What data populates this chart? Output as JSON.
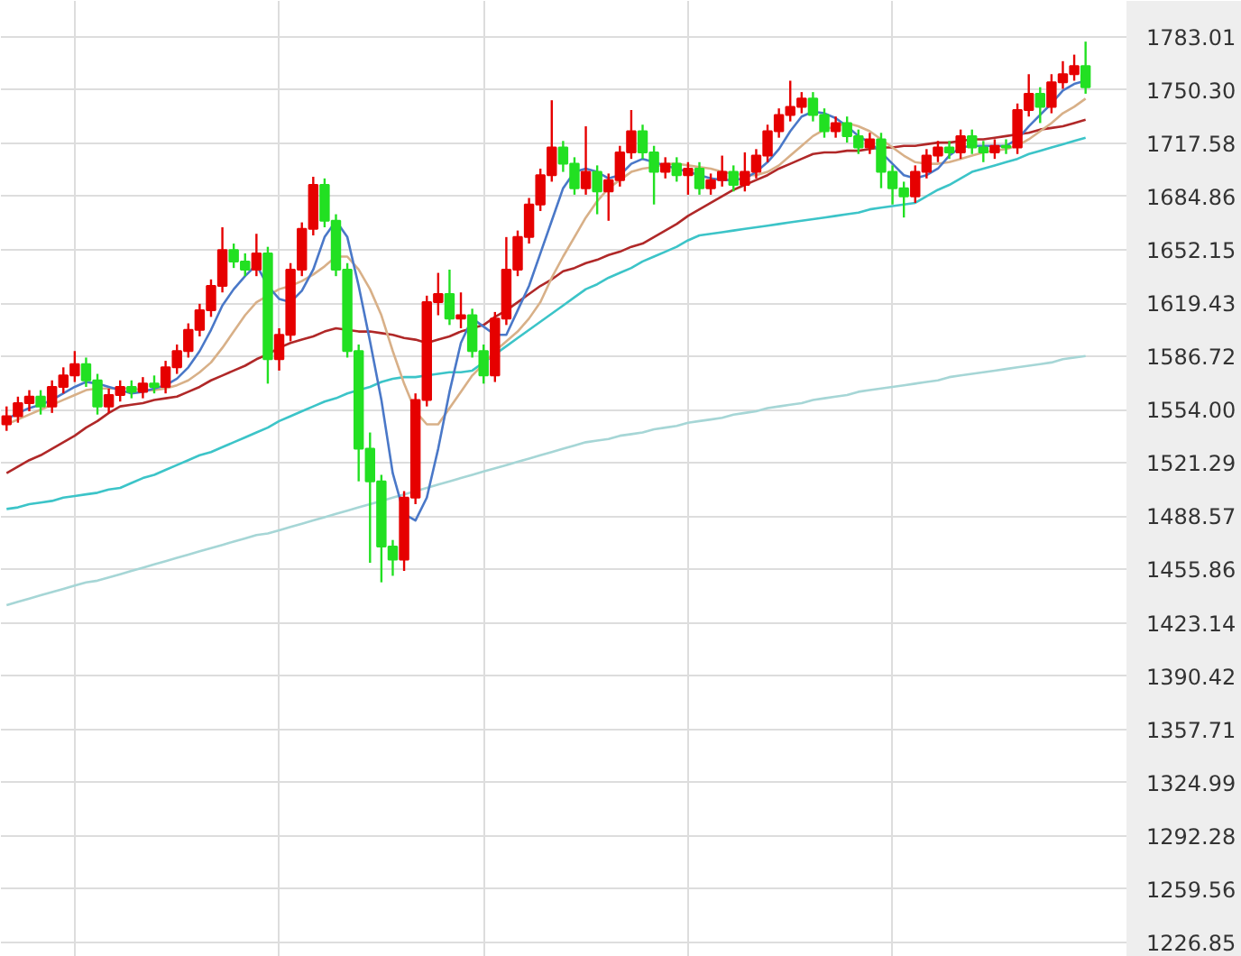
{
  "chart_data": {
    "type": "candlestick",
    "categories": [
      null,
      null,
      null,
      null,
      null,
      null,
      null,
      null,
      null,
      null,
      null,
      null,
      null,
      null,
      null,
      null,
      null,
      null,
      null,
      null,
      null,
      null,
      null,
      null,
      null,
      null,
      null,
      null,
      null,
      null,
      null,
      null,
      null,
      null,
      null,
      null,
      null,
      null,
      null,
      null,
      null,
      null,
      null,
      null,
      null,
      null,
      null,
      null,
      null,
      null,
      null,
      null,
      null,
      null,
      null,
      null,
      null,
      null,
      null,
      null,
      null,
      null,
      null,
      null,
      null,
      null,
      null,
      null,
      null,
      null,
      null,
      null,
      null,
      null,
      null,
      null,
      null,
      null,
      null,
      null,
      null,
      null,
      null,
      null,
      null,
      null,
      null,
      null,
      null,
      null,
      null,
      null,
      null,
      null,
      null,
      null
    ],
    "ohlc": [
      [
        1545,
        1556,
        1541,
        1550
      ],
      [
        1550,
        1562,
        1546,
        1558
      ],
      [
        1558,
        1566,
        1553,
        1562
      ],
      [
        1562,
        1566,
        1551,
        1556
      ],
      [
        1556,
        1572,
        1552,
        1568
      ],
      [
        1568,
        1580,
        1564,
        1575
      ],
      [
        1575,
        1590,
        1571,
        1582
      ],
      [
        1582,
        1586,
        1568,
        1572
      ],
      [
        1572,
        1576,
        1551,
        1556
      ],
      [
        1556,
        1567,
        1552,
        1563
      ],
      [
        1563,
        1572,
        1559,
        1568
      ],
      [
        1568,
        1572,
        1561,
        1565
      ],
      [
        1565,
        1574,
        1561,
        1570
      ],
      [
        1570,
        1575,
        1564,
        1568
      ],
      [
        1568,
        1584,
        1564,
        1580
      ],
      [
        1580,
        1594,
        1576,
        1590
      ],
      [
        1590,
        1607,
        1586,
        1603
      ],
      [
        1603,
        1619,
        1599,
        1615
      ],
      [
        1615,
        1634,
        1611,
        1630
      ],
      [
        1630,
        1666,
        1626,
        1652
      ],
      [
        1652,
        1656,
        1641,
        1645
      ],
      [
        1645,
        1650,
        1636,
        1640
      ],
      [
        1640,
        1662,
        1636,
        1650
      ],
      [
        1650,
        1654,
        1570,
        1585
      ],
      [
        1585,
        1604,
        1578,
        1600
      ],
      [
        1600,
        1644,
        1596,
        1640
      ],
      [
        1640,
        1669,
        1636,
        1665
      ],
      [
        1665,
        1697,
        1661,
        1692
      ],
      [
        1692,
        1696,
        1666,
        1670
      ],
      [
        1670,
        1674,
        1636,
        1640
      ],
      [
        1640,
        1644,
        1586,
        1590
      ],
      [
        1590,
        1594,
        1510,
        1530
      ],
      [
        1530,
        1540,
        1460,
        1510
      ],
      [
        1510,
        1514,
        1448,
        1470
      ],
      [
        1470,
        1474,
        1452,
        1462
      ],
      [
        1462,
        1504,
        1455,
        1500
      ],
      [
        1500,
        1564,
        1496,
        1560
      ],
      [
        1560,
        1624,
        1556,
        1620
      ],
      [
        1620,
        1638,
        1612,
        1625
      ],
      [
        1625,
        1640,
        1606,
        1610
      ],
      [
        1610,
        1626,
        1604,
        1612
      ],
      [
        1612,
        1616,
        1586,
        1590
      ],
      [
        1590,
        1594,
        1570,
        1575
      ],
      [
        1575,
        1614,
        1571,
        1610
      ],
      [
        1610,
        1660,
        1606,
        1640
      ],
      [
        1640,
        1664,
        1636,
        1660
      ],
      [
        1660,
        1684,
        1656,
        1680
      ],
      [
        1680,
        1702,
        1676,
        1698
      ],
      [
        1698,
        1744,
        1694,
        1715
      ],
      [
        1715,
        1719,
        1700,
        1705
      ],
      [
        1705,
        1709,
        1686,
        1690
      ],
      [
        1690,
        1728,
        1686,
        1700
      ],
      [
        1700,
        1704,
        1674,
        1688
      ],
      [
        1688,
        1699,
        1670,
        1695
      ],
      [
        1695,
        1716,
        1691,
        1712
      ],
      [
        1712,
        1738,
        1708,
        1725
      ],
      [
        1725,
        1729,
        1708,
        1712
      ],
      [
        1712,
        1716,
        1680,
        1700
      ],
      [
        1700,
        1709,
        1696,
        1705
      ],
      [
        1705,
        1709,
        1694,
        1698
      ],
      [
        1698,
        1706,
        1686,
        1702
      ],
      [
        1702,
        1706,
        1686,
        1690
      ],
      [
        1690,
        1699,
        1686,
        1695
      ],
      [
        1695,
        1710,
        1691,
        1700
      ],
      [
        1700,
        1704,
        1688,
        1692
      ],
      [
        1692,
        1712,
        1688,
        1700
      ],
      [
        1700,
        1714,
        1696,
        1710
      ],
      [
        1710,
        1729,
        1706,
        1725
      ],
      [
        1725,
        1739,
        1721,
        1735
      ],
      [
        1735,
        1756,
        1731,
        1740
      ],
      [
        1740,
        1749,
        1736,
        1745
      ],
      [
        1745,
        1749,
        1731,
        1735
      ],
      [
        1735,
        1739,
        1721,
        1725
      ],
      [
        1725,
        1734,
        1721,
        1730
      ],
      [
        1730,
        1734,
        1718,
        1722
      ],
      [
        1722,
        1726,
        1711,
        1715
      ],
      [
        1715,
        1724,
        1711,
        1720
      ],
      [
        1720,
        1724,
        1690,
        1700
      ],
      [
        1700,
        1704,
        1680,
        1690
      ],
      [
        1690,
        1694,
        1672,
        1685
      ],
      [
        1685,
        1704,
        1681,
        1700
      ],
      [
        1700,
        1714,
        1696,
        1710
      ],
      [
        1710,
        1719,
        1706,
        1715
      ],
      [
        1715,
        1719,
        1708,
        1712
      ],
      [
        1712,
        1726,
        1708,
        1722
      ],
      [
        1722,
        1726,
        1711,
        1715
      ],
      [
        1715,
        1719,
        1706,
        1712
      ],
      [
        1712,
        1720,
        1708,
        1716
      ],
      [
        1716,
        1720,
        1711,
        1715
      ],
      [
        1715,
        1742,
        1711,
        1738
      ],
      [
        1738,
        1760,
        1734,
        1748
      ],
      [
        1748,
        1752,
        1730,
        1740
      ],
      [
        1740,
        1760,
        1736,
        1755
      ],
      [
        1755,
        1768,
        1751,
        1760
      ],
      [
        1760,
        1772,
        1756,
        1765
      ],
      [
        1765,
        1780,
        1748,
        1752
      ]
    ],
    "colors": [
      "#e60000",
      "#e60000",
      "#e60000",
      "#22e022",
      "#e60000",
      "#e60000",
      "#e60000",
      "#22e022",
      "#22e022",
      "#e60000",
      "#e60000",
      "#22e022",
      "#e60000",
      "#22e022",
      "#e60000",
      "#e60000",
      "#e60000",
      "#e60000",
      "#e60000",
      "#e60000",
      "#22e022",
      "#22e022",
      "#e60000",
      "#22e022",
      "#e60000",
      "#e60000",
      "#e60000",
      "#e60000",
      "#22e022",
      "#22e022",
      "#22e022",
      "#22e022",
      "#22e022",
      "#22e022",
      "#22e022",
      "#e60000",
      "#e60000",
      "#e60000",
      "#e60000",
      "#22e022",
      "#e60000",
      "#22e022",
      "#22e022",
      "#e60000",
      "#e60000",
      "#e60000",
      "#e60000",
      "#e60000",
      "#e60000",
      "#22e022",
      "#22e022",
      "#e60000",
      "#22e022",
      "#e60000",
      "#e60000",
      "#e60000",
      "#22e022",
      "#22e022",
      "#e60000",
      "#22e022",
      "#e60000",
      "#22e022",
      "#e60000",
      "#e60000",
      "#22e022",
      "#e60000",
      "#e60000",
      "#e60000",
      "#e60000",
      "#e60000",
      "#e60000",
      "#22e022",
      "#22e022",
      "#e60000",
      "#22e022",
      "#22e022",
      "#e60000",
      "#22e022",
      "#22e022",
      "#22e022",
      "#e60000",
      "#e60000",
      "#e60000",
      "#22e022",
      "#e60000",
      "#22e022",
      "#22e022",
      "#e60000",
      "#22e022",
      "#e60000",
      "#e60000",
      "#22e022",
      "#e60000",
      "#e60000",
      "#e60000",
      "#22e022"
    ],
    "series": [
      {
        "type": "line",
        "color": "#a6d6d6",
        "values": [
          1434,
          1436,
          1438,
          1440,
          1442,
          1444,
          1446,
          1448,
          1449,
          1451,
          1453,
          1455,
          1457,
          1459,
          1461,
          1463,
          1465,
          1467,
          1469,
          1471,
          1473,
          1475,
          1477,
          1478,
          1480,
          1482,
          1484,
          1486,
          1488,
          1490,
          1492,
          1494,
          1496,
          1498,
          1500,
          1502,
          1504,
          1506,
          1508,
          1510,
          1512,
          1514,
          1516,
          1518,
          1520,
          1522,
          1524,
          1526,
          1528,
          1530,
          1532,
          1534,
          1535,
          1536,
          1538,
          1539,
          1540,
          1542,
          1543,
          1544,
          1546,
          1547,
          1548,
          1549,
          1551,
          1552,
          1553,
          1555,
          1556,
          1557,
          1558,
          1560,
          1561,
          1562,
          1563,
          1565,
          1566,
          1567,
          1568,
          1569,
          1570,
          1571,
          1572,
          1574,
          1575,
          1576,
          1577,
          1578,
          1579,
          1580,
          1581,
          1582,
          1583,
          1585,
          1586,
          1587
        ]
      },
      {
        "type": "line",
        "color": "#3cc4c8",
        "values": [
          1493,
          1494,
          1496,
          1497,
          1498,
          1500,
          1501,
          1502,
          1503,
          1505,
          1506,
          1509,
          1512,
          1514,
          1517,
          1520,
          1523,
          1526,
          1528,
          1531,
          1534,
          1537,
          1540,
          1543,
          1547,
          1550,
          1553,
          1556,
          1559,
          1561,
          1564,
          1566,
          1568,
          1571,
          1573,
          1574,
          1574,
          1575,
          1576,
          1577,
          1577,
          1578,
          1583,
          1588,
          1593,
          1598,
          1603,
          1608,
          1613,
          1618,
          1623,
          1628,
          1631,
          1635,
          1638,
          1641,
          1645,
          1648,
          1651,
          1654,
          1658,
          1661,
          1662,
          1663,
          1664,
          1665,
          1666,
          1667,
          1668,
          1669,
          1670,
          1671,
          1672,
          1673,
          1674,
          1675,
          1677,
          1678,
          1679,
          1680,
          1681,
          1685,
          1689,
          1692,
          1696,
          1700,
          1702,
          1704,
          1706,
          1708,
          1711,
          1713,
          1715,
          1717,
          1719,
          1721
        ]
      },
      {
        "type": "line",
        "color": "#b02828",
        "values": [
          1515,
          1519,
          1523,
          1526,
          1530,
          1534,
          1538,
          1543,
          1547,
          1552,
          1556,
          1557,
          1558,
          1560,
          1561,
          1562,
          1565,
          1568,
          1572,
          1575,
          1578,
          1581,
          1585,
          1588,
          1592,
          1595,
          1597,
          1599,
          1602,
          1604,
          1603,
          1602,
          1602,
          1601,
          1600,
          1598,
          1597,
          1595,
          1597,
          1599,
          1602,
          1604,
          1606,
          1611,
          1615,
          1620,
          1625,
          1630,
          1634,
          1639,
          1641,
          1644,
          1646,
          1649,
          1651,
          1654,
          1656,
          1660,
          1664,
          1668,
          1673,
          1677,
          1681,
          1685,
          1689,
          1692,
          1695,
          1698,
          1702,
          1705,
          1708,
          1711,
          1712,
          1712,
          1713,
          1713,
          1714,
          1715,
          1715,
          1716,
          1716,
          1717,
          1718,
          1718,
          1719,
          1720,
          1720,
          1721,
          1722,
          1723,
          1724,
          1726,
          1727,
          1728,
          1730,
          1732
        ]
      },
      {
        "type": "line",
        "color": "#d8b088",
        "values": [
          1545,
          1548,
          1551,
          1554,
          1557,
          1560,
          1563,
          1566,
          1567,
          1567,
          1567,
          1567,
          1566,
          1566,
          1567,
          1569,
          1572,
          1577,
          1583,
          1592,
          1602,
          1612,
          1620,
          1624,
          1628,
          1630,
          1633,
          1637,
          1642,
          1648,
          1648,
          1640,
          1628,
          1612,
          1590,
          1570,
          1553,
          1545,
          1545,
          1555,
          1565,
          1575,
          1582,
          1590,
          1596,
          1602,
          1610,
          1620,
          1635,
          1648,
          1660,
          1672,
          1682,
          1690,
          1695,
          1700,
          1702,
          1703,
          1705,
          1705,
          1704,
          1703,
          1702,
          1700,
          1699,
          1698,
          1698,
          1700,
          1704,
          1710,
          1716,
          1722,
          1726,
          1728,
          1730,
          1728,
          1725,
          1720,
          1715,
          1710,
          1706,
          1705,
          1705,
          1706,
          1708,
          1710,
          1712,
          1713,
          1714,
          1716,
          1720,
          1725,
          1730,
          1736,
          1740,
          1745
        ]
      },
      {
        "type": "line",
        "color": "#4a78c8",
        "values": [
          1548,
          1552,
          1555,
          1557,
          1560,
          1564,
          1568,
          1571,
          1570,
          1568,
          1566,
          1564,
          1565,
          1567,
          1569,
          1573,
          1580,
          1590,
          1603,
          1618,
          1628,
          1636,
          1643,
          1630,
          1622,
          1620,
          1627,
          1640,
          1660,
          1670,
          1660,
          1630,
          1596,
          1560,
          1515,
          1490,
          1486,
          1500,
          1530,
          1565,
          1595,
          1610,
          1605,
          1600,
          1600,
          1615,
          1630,
          1650,
          1670,
          1690,
          1700,
          1702,
          1700,
          1696,
          1698,
          1705,
          1708,
          1706,
          1704,
          1702,
          1700,
          1698,
          1696,
          1695,
          1695,
          1696,
          1700,
          1706,
          1714,
          1725,
          1734,
          1737,
          1736,
          1733,
          1728,
          1722,
          1718,
          1712,
          1705,
          1698,
          1696,
          1698,
          1702,
          1710,
          1715,
          1716,
          1716,
          1716,
          1716,
          1720,
          1728,
          1735,
          1742,
          1750,
          1754,
          1756
        ]
      }
    ],
    "ylim": [
      1218,
      1805
    ],
    "yticks": [
      1226.85,
      1259.56,
      1292.28,
      1324.99,
      1357.71,
      1390.42,
      1423.14,
      1455.86,
      1488.57,
      1521.29,
      {
        "value": 1554,
        "label": "1554.00"
      },
      1586.72,
      1619.43,
      1652.15,
      1684.86,
      1717.58,
      {
        "value": 1750.3,
        "label": "1750.30"
      },
      1783.01
    ],
    "grid": true,
    "tick_labels": "y"
  }
}
